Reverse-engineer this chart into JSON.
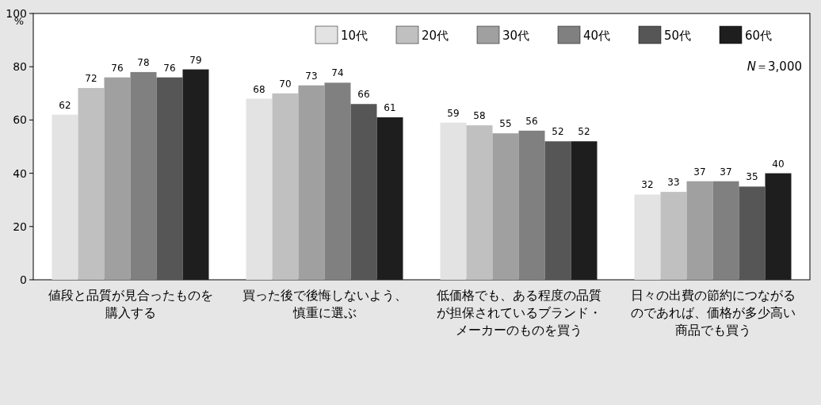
{
  "chart_data": {
    "type": "bar",
    "ylabel": "%",
    "ylim": [
      0,
      100
    ],
    "yticks": [
      0,
      20,
      40,
      60,
      80,
      100
    ],
    "grid": false,
    "legend": "top right",
    "data_labels": true,
    "categories": [
      "値段と品質が見合ったものを購入する",
      "買った後で後悔しないよう、慎重に選ぶ",
      "低価格でも、ある程度の品質が担保されているブランド・メーカーのものを買う",
      "日々の出費の節約につながるのであれば、価格が多少高い商品でも買う"
    ],
    "series": [
      {
        "name": "10代",
        "color": "#e3e3e3",
        "values": [
          62,
          68,
          59,
          32
        ]
      },
      {
        "name": "20代",
        "color": "#c0c0c0",
        "values": [
          72,
          70,
          58,
          33
        ]
      },
      {
        "name": "30代",
        "color": "#a0a0a0",
        "values": [
          76,
          73,
          55,
          37
        ]
      },
      {
        "name": "40代",
        "color": "#808080",
        "values": [
          78,
          74,
          56,
          37
        ]
      },
      {
        "name": "50代",
        "color": "#565656",
        "values": [
          76,
          66,
          52,
          35
        ]
      },
      {
        "name": "60代",
        "color": "#1e1e1e",
        "values": [
          79,
          61,
          52,
          40
        ]
      }
    ],
    "annotations": [
      "N＝3,000"
    ]
  }
}
